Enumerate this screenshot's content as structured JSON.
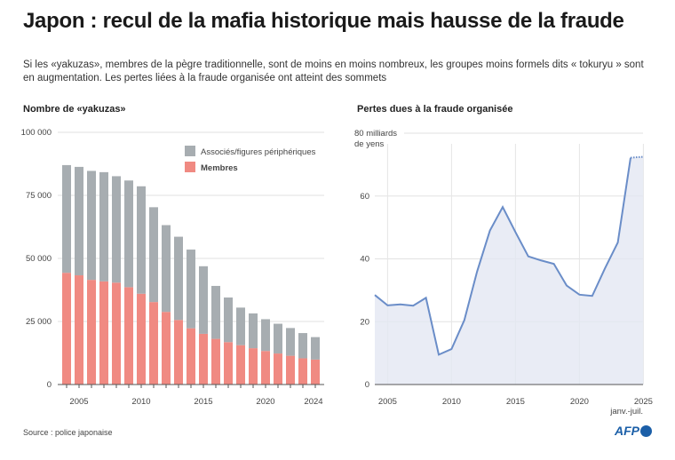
{
  "title": "Japon : recul de la mafia historique mais hausse de la fraude",
  "subtitle": "Si les «yakuzas», membres de la pègre traditionnelle, sont de moins en moins nombreux, les groupes moins formels dits « tokuryu » sont en augmentation. Les pertes liées à la fraude organisée ont atteint des sommets",
  "source": "Source : police japonaise",
  "logo": "AFP",
  "colors": {
    "members": "#f08a82",
    "associates": "#a7adb1",
    "line": "#6a8dc8",
    "area": "#e3e7f2"
  },
  "chart_data": [
    {
      "type": "bar",
      "stacked": true,
      "title": "Nombre de «yakuzas»",
      "x": [
        2004,
        2005,
        2006,
        2007,
        2008,
        2009,
        2010,
        2011,
        2012,
        2013,
        2014,
        2015,
        2016,
        2017,
        2018,
        2019,
        2020,
        2021,
        2022,
        2023,
        2024
      ],
      "xticks": [
        "2005",
        "2010",
        "2015",
        "2020",
        "2024"
      ],
      "yticks": [
        "0",
        "25 000",
        "50 000",
        "75 000",
        "100 000"
      ],
      "ylim": [
        0,
        100000
      ],
      "grid": true,
      "legend_placement": "top-right",
      "series": [
        {
          "name": "Membres",
          "values": [
            44300,
            43300,
            41500,
            40900,
            40400,
            38600,
            36000,
            32700,
            28800,
            25600,
            22300,
            20100,
            18100,
            16800,
            15600,
            14400,
            13300,
            12300,
            11400,
            10400,
            9900
          ]
        },
        {
          "name": "Associés/figures périphériques",
          "values": [
            42700,
            43000,
            43200,
            43300,
            42200,
            42300,
            42600,
            37600,
            34400,
            33000,
            31200,
            26800,
            21000,
            17700,
            14900,
            13800,
            12600,
            11800,
            11000,
            10000,
            8900
          ]
        }
      ]
    },
    {
      "type": "area",
      "title": "Pertes dues à la fraude organisée",
      "ylabel": "80 milliards de yens",
      "x": [
        2004,
        2005,
        2006,
        2007,
        2008,
        2009,
        2010,
        2011,
        2012,
        2013,
        2014,
        2015,
        2016,
        2017,
        2018,
        2019,
        2020,
        2021,
        2022,
        2023,
        2024,
        2025
      ],
      "values": [
        28.5,
        25.2,
        25.5,
        25.1,
        27.6,
        9.5,
        11.3,
        20.5,
        36,
        49,
        56.5,
        48.5,
        40.8,
        39.5,
        38.4,
        31.5,
        28.6,
        28.2,
        37,
        45.2,
        72.2,
        72.5
      ],
      "dotted_last_segment": true,
      "xticks": [
        "2005",
        "2010",
        "2015",
        "2020",
        "2025"
      ],
      "xtick_note": "janv.-juil.",
      "yticks": [
        "0",
        "20",
        "40",
        "60"
      ],
      "ylim": [
        0,
        80
      ],
      "grid": true
    }
  ]
}
